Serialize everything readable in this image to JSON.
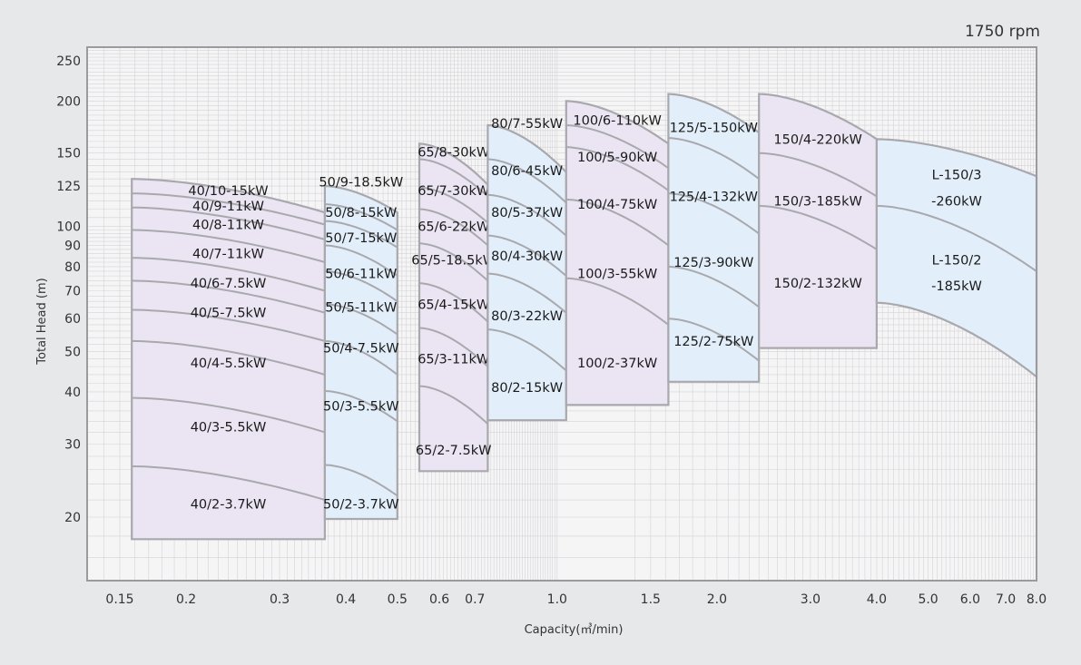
{
  "chart_data": {
    "type": "area",
    "title": "",
    "annotation": "1750 rpm",
    "xlabel": "Capacity(㎥/min)",
    "ylabel": "Total Head (m)",
    "x_scale": "log",
    "y_scale": "log",
    "xlim": [
      0.13,
      8.0
    ],
    "ylim": [
      15,
      270
    ],
    "grid": true,
    "x_ticks": [
      {
        "value": 0.15,
        "label": "0.15"
      },
      {
        "value": 0.2,
        "label": "0.2"
      },
      {
        "value": 0.3,
        "label": "0.3"
      },
      {
        "value": 0.4,
        "label": "0.4"
      },
      {
        "value": 0.5,
        "label": "0.5"
      },
      {
        "value": 0.6,
        "label": "0.6"
      },
      {
        "value": 0.7,
        "label": "0.7"
      },
      {
        "value": 1.0,
        "label": "1.0"
      },
      {
        "value": 1.5,
        "label": "1.5"
      },
      {
        "value": 2.0,
        "label": "2.0"
      },
      {
        "value": 3.0,
        "label": "3.0"
      },
      {
        "value": 4.0,
        "label": "4.0"
      },
      {
        "value": 5.0,
        "label": "5.0"
      },
      {
        "value": 6.0,
        "label": "6.0"
      },
      {
        "value": 7.0,
        "label": "7.0"
      },
      {
        "value": 8.0,
        "label": "8.0"
      }
    ],
    "y_ticks": [
      {
        "value": 20,
        "label": "20"
      },
      {
        "value": 30,
        "label": "30"
      },
      {
        "value": 40,
        "label": "40"
      },
      {
        "value": 50,
        "label": "50"
      },
      {
        "value": 60,
        "label": "60"
      },
      {
        "value": 70,
        "label": "70"
      },
      {
        "value": 80,
        "label": "80"
      },
      {
        "value": 90,
        "label": "90"
      },
      {
        "value": 100,
        "label": "100"
      },
      {
        "value": 125,
        "label": "125"
      },
      {
        "value": 150,
        "label": "150"
      },
      {
        "value": 200,
        "label": "200"
      },
      {
        "value": 250,
        "label": "250"
      }
    ],
    "colors": {
      "background": "#e7e8ea",
      "plot": "#f5f5f6",
      "grid": "#d4d4d7",
      "frame": "#9b9b9f",
      "lavender": "#ebe5f3",
      "lightblue": "#e2effa",
      "outline": "#a8a8ad"
    },
    "zones": [
      {
        "name": "40",
        "color": "lavender",
        "x0": 0.158,
        "x1": 0.365,
        "h_left_top": 130,
        "h_right_top": 108,
        "bottom": 17.7,
        "dividers": [
          [
            120,
            101
          ],
          [
            111,
            93
          ],
          [
            98,
            82
          ],
          [
            84,
            70
          ],
          [
            74,
            62
          ],
          [
            63,
            53
          ],
          [
            53,
            44
          ],
          [
            38.7,
            32
          ],
          [
            26.5,
            22
          ]
        ],
        "labels": [
          "40/10-15kW",
          "40/9-11kW",
          "40/8-11kW",
          "40/7-11kW",
          "40/6-7.5kW",
          "40/5-7.5kW",
          "40/4-5.5kW",
          "40/3-5.5kW",
          "40/2-3.7kW"
        ],
        "label_y": [
          122,
          112,
          101,
          86,
          73,
          62,
          47,
          33,
          21.5
        ]
      },
      {
        "name": "50",
        "color": "lightblue",
        "x0": 0.365,
        "x1": 0.5,
        "h_left_top": 125,
        "h_right_top": 108,
        "bottom": 19.8,
        "dividers": [
          [
            113,
            98
          ],
          [
            103,
            89
          ],
          [
            90,
            76
          ],
          [
            78,
            66
          ],
          [
            65,
            55
          ],
          [
            53,
            44
          ],
          [
            40.2,
            34
          ],
          [
            26.7,
            22.5
          ]
        ],
        "labels": [
          "50/9-18.5kW",
          "50/8-15kW",
          "50/7-15kW",
          "50/6-11kW",
          "50/5-11kW",
          "50/4-7.5kW",
          "50/3-5.5kW",
          "50/2-3.7kW"
        ],
        "label_y": [
          128,
          108,
          94,
          77,
          64,
          51,
          37,
          21.5
        ]
      },
      {
        "name": "65",
        "color": "lavender",
        "x0": 0.55,
        "x1": 0.74,
        "h_left_top": 158,
        "h_right_top": 126,
        "bottom": 25.8,
        "dividers": [
          [
            145,
            118
          ],
          [
            124,
            102
          ],
          [
            110,
            90
          ],
          [
            91,
            74
          ],
          [
            73,
            59
          ],
          [
            57,
            46
          ],
          [
            41.3,
            33.5
          ]
        ],
        "labels": [
          "65/8-30kW",
          "65/7-30kW",
          "65/6-22kW",
          "65/5-18.5kW",
          "65/4-15kW",
          "65/3-11kW",
          "65/2-7.5kW"
        ],
        "label_y": [
          151,
          122,
          100,
          83,
          65,
          48,
          29
        ]
      },
      {
        "name": "80",
        "color": "lightblue",
        "x0": 0.74,
        "x1": 1.04,
        "h_left_top": 175,
        "h_right_top": 135,
        "bottom": 34.2,
        "dividers": [
          [
            145,
            114
          ],
          [
            119,
            95
          ],
          [
            95,
            76
          ],
          [
            77,
            62
          ],
          [
            56.5,
            45
          ]
        ],
        "labels": [
          "80/7-55kW",
          "80/6-45kW",
          "80/5-37kW",
          "80/4-30kW",
          "80/3-22kW",
          "80/2-15kW"
        ],
        "label_y": [
          177,
          136,
          108,
          85,
          61,
          41
        ]
      },
      {
        "name": "100",
        "color": "lavender",
        "x0": 1.04,
        "x1": 1.62,
        "h_left_top": 200,
        "h_right_top": 158,
        "bottom": 37.2,
        "dividers": [
          [
            175,
            138
          ],
          [
            155,
            122
          ],
          [
            116,
            90
          ],
          [
            75,
            58
          ]
        ],
        "labels": [
          "100/6-110kW",
          "100/5-90kW",
          "100/4-75kW",
          "100/3-55kW",
          "100/2-37kW"
        ],
        "label_y": [
          180,
          147,
          113,
          77,
          47
        ]
      },
      {
        "name": "125",
        "color": "lightblue",
        "x0": 1.62,
        "x1": 2.4,
        "h_left_top": 208,
        "h_right_top": 168,
        "bottom": 42.3,
        "dividers": [
          [
            163,
            130
          ],
          [
            120,
            96
          ],
          [
            80,
            64
          ],
          [
            60,
            47.5
          ]
        ],
        "labels": [
          "125/5-150kW",
          "125/4-132kW",
          "125/3-90kW",
          "125/2-75kW"
        ],
        "label_y": [
          173,
          118,
          82,
          53
        ]
      },
      {
        "name": "150",
        "color": "lavender",
        "x0": 2.4,
        "x1": 4.0,
        "h_left_top": 208,
        "h_right_top": 162,
        "bottom": 51,
        "dividers": [
          [
            150,
            118
          ],
          [
            112,
            88
          ]
        ],
        "labels": [
          "150/4-220kW",
          "150/3-185kW",
          "150/2-132kW"
        ],
        "label_y": [
          162,
          115,
          73
        ]
      },
      {
        "name": "L-150",
        "color": "lightblue",
        "x0": 4.0,
        "x1": 8.0,
        "h_left_top": 162,
        "h_right_top": 132,
        "bottom_left": 65.5,
        "bottom_right": 43.5,
        "dividers": [
          [
            112,
            78
          ]
        ],
        "labels": [
          "L-150/3",
          "-260kW",
          "L-150/2",
          "-185kW"
        ],
        "label_y": [
          133,
          115,
          83,
          72
        ]
      }
    ]
  }
}
